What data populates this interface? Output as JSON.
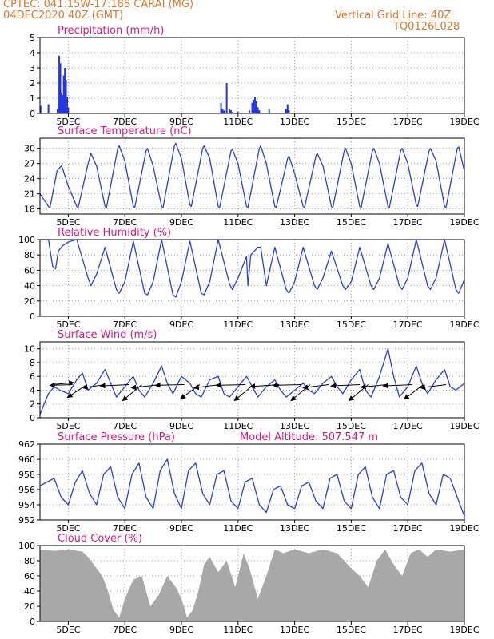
{
  "header": {
    "line1": "CPTEC:   041:15W-17:18S   CARAI (MG)",
    "line2": "04DEC2020 40Z (GMT)",
    "right1": "Vertical Grid Line: 40Z",
    "right2": "TQ0126L028",
    "color": "#e0782a"
  },
  "colors": {
    "title": "#e0167a",
    "line": "#2b3ee0",
    "bar": "#2236e8",
    "cloud": "#a8a8a8",
    "grid": "#9a9a9a",
    "axis": "#000000"
  },
  "x_axis": {
    "ticks": [
      "5DEC",
      "7DEC",
      "9DEC",
      "11DEC",
      "13DEC",
      "15DEC",
      "17DEC",
      "19DEC"
    ],
    "tick_positions": [
      1,
      3,
      5,
      7,
      9,
      11,
      13,
      15
    ],
    "range": [
      0,
      15
    ]
  },
  "model_altitude": "Model Altitude: 507.547 m",
  "chart_data": [
    {
      "type": "bar",
      "title": "Precipitation (mm/h)",
      "ylim": [
        0,
        5
      ],
      "yticks": [
        "0",
        "1",
        "2",
        "3",
        "4",
        "5"
      ],
      "x_days": [
        0.02,
        0.3,
        0.62,
        0.68,
        0.72,
        0.76,
        0.8,
        0.84,
        0.88,
        0.92,
        0.96,
        1.0,
        6.4,
        6.45,
        6.5,
        6.6,
        6.7,
        6.75,
        6.8,
        7.0,
        7.4,
        7.5,
        7.55,
        7.6,
        7.65,
        7.7,
        7.75,
        8.1,
        8.7,
        8.75,
        8.8
      ],
      "values": [
        0.5,
        0.6,
        0.3,
        3.8,
        3.3,
        1.4,
        1.2,
        2.5,
        3.0,
        2.2,
        1.1,
        0.4,
        0.7,
        0.3,
        0.2,
        2.0,
        0.3,
        0.2,
        0.1,
        0.1,
        0.2,
        0.7,
        0.9,
        1.1,
        0.8,
        0.4,
        0.2,
        0.3,
        0.3,
        0.6,
        0.2
      ]
    },
    {
      "type": "line",
      "title": "Surface Temperature (nC)",
      "ylim": [
        17,
        32
      ],
      "yticks": [
        "18",
        "21",
        "24",
        "27",
        "30"
      ],
      "x_days": [
        0,
        0.3,
        0.35,
        0.6,
        0.75,
        0.8,
        1.0,
        1.3,
        1.35,
        1.7,
        1.8,
        2.0,
        2.3,
        2.35,
        2.75,
        2.8,
        3.0,
        3.3,
        3.35,
        3.75,
        3.8,
        4.0,
        4.3,
        4.35,
        4.75,
        4.8,
        5.0,
        5.3,
        5.35,
        5.75,
        5.8,
        6.0,
        6.3,
        6.35,
        6.75,
        6.8,
        7.0,
        7.3,
        7.35,
        7.75,
        7.8,
        8.0,
        8.3,
        8.35,
        8.75,
        8.8,
        9.0,
        9.3,
        9.35,
        9.75,
        9.8,
        10.0,
        10.3,
        10.35,
        10.75,
        10.8,
        11.0,
        11.3,
        11.35,
        11.75,
        11.8,
        12.0,
        12.3,
        12.35,
        12.75,
        12.8,
        13.0,
        13.3,
        13.35,
        13.75,
        13.8,
        14.0,
        14.3,
        14.35,
        14.75,
        14.8,
        15.0
      ],
      "values": [
        21.0,
        18.5,
        18.2,
        25.5,
        26.5,
        26.0,
        22.5,
        18.5,
        18.3,
        27.0,
        29.0,
        26.5,
        18.5,
        18.3,
        30.0,
        30.5,
        27.5,
        18.5,
        18.3,
        29.5,
        30.0,
        26.5,
        18.5,
        18.3,
        30.5,
        31.0,
        28.0,
        18.8,
        18.5,
        30.0,
        30.5,
        28.0,
        18.5,
        18.3,
        29.5,
        29.8,
        27.0,
        18.5,
        18.3,
        30.0,
        30.5,
        27.0,
        18.5,
        18.3,
        28.0,
        28.5,
        25.0,
        18.5,
        18.3,
        28.5,
        29.0,
        26.5,
        18.5,
        18.3,
        29.5,
        30.0,
        27.0,
        18.5,
        18.3,
        29.5,
        30.0,
        27.0,
        18.5,
        18.3,
        29.5,
        30.0,
        27.0,
        18.8,
        18.5,
        29.5,
        30.0,
        27.5,
        18.5,
        18.3,
        30.0,
        30.3,
        25.5
      ]
    },
    {
      "type": "line",
      "title": "Relative Humidity (%)",
      "ylim": [
        0,
        100
      ],
      "yticks": [
        "0",
        "20",
        "40",
        "60",
        "80",
        "100"
      ],
      "x_days": [
        0,
        0.3,
        0.45,
        0.55,
        0.65,
        0.8,
        1.0,
        1.3,
        1.7,
        1.8,
        2.0,
        2.3,
        2.7,
        2.8,
        3.0,
        3.3,
        3.7,
        3.8,
        4.0,
        4.3,
        4.7,
        4.8,
        5.0,
        5.3,
        5.7,
        5.8,
        6.0,
        6.3,
        6.7,
        6.8,
        7.0,
        7.3,
        7.35,
        7.45,
        7.7,
        7.8,
        8.0,
        8.3,
        8.7,
        8.8,
        9.0,
        9.3,
        9.7,
        9.8,
        10.0,
        10.3,
        10.7,
        10.8,
        11.0,
        11.3,
        11.7,
        11.8,
        12.0,
        12.3,
        12.7,
        12.8,
        13.0,
        13.3,
        13.7,
        13.8,
        14.0,
        14.3,
        14.7,
        14.8,
        15.0
      ],
      "values": [
        100,
        100,
        65,
        62,
        85,
        92,
        97,
        100,
        50,
        40,
        55,
        90,
        35,
        30,
        45,
        98,
        30,
        28,
        45,
        100,
        28,
        25,
        45,
        98,
        30,
        28,
        45,
        100,
        42,
        35,
        50,
        78,
        40,
        80,
        90,
        90,
        40,
        90,
        35,
        30,
        45,
        90,
        40,
        35,
        50,
        85,
        40,
        35,
        45,
        90,
        40,
        35,
        50,
        95,
        40,
        35,
        50,
        100,
        40,
        35,
        50,
        100,
        35,
        30,
        48
      ]
    },
    {
      "type": "line",
      "title": "Surface Wind (m/s)",
      "ylim": [
        0,
        11
      ],
      "yticks": [
        "0",
        "2",
        "4",
        "6",
        "8",
        "10"
      ],
      "x_days": [
        0,
        0.1,
        0.3,
        0.5,
        0.7,
        1.0,
        1.3,
        1.5,
        1.7,
        2.0,
        2.3,
        2.5,
        2.7,
        3.0,
        3.3,
        3.5,
        3.7,
        4.0,
        4.3,
        4.5,
        4.7,
        5.0,
        5.3,
        5.5,
        5.7,
        6.0,
        6.3,
        6.5,
        6.7,
        7.0,
        7.3,
        7.5,
        7.7,
        8.0,
        8.3,
        8.5,
        8.7,
        9.0,
        9.3,
        9.5,
        9.7,
        10.0,
        10.3,
        10.5,
        10.7,
        11.0,
        11.3,
        11.5,
        11.7,
        12.0,
        12.3,
        12.5,
        12.7,
        13.0,
        13.3,
        13.5,
        13.7,
        14.0,
        14.3,
        14.5,
        14.7,
        15.0
      ],
      "values": [
        0.5,
        1.5,
        3.5,
        4.5,
        4.0,
        3.5,
        5.5,
        6.5,
        4.0,
        5.0,
        7.0,
        5.0,
        3.0,
        4.5,
        6.0,
        4.0,
        3.0,
        5.0,
        7.5,
        5.0,
        3.5,
        6.0,
        5.0,
        3.5,
        3.0,
        5.5,
        6.0,
        3.5,
        3.0,
        4.5,
        6.0,
        4.5,
        3.0,
        4.5,
        5.5,
        4.0,
        3.0,
        4.0,
        5.0,
        4.0,
        3.5,
        5.0,
        6.0,
        4.5,
        3.5,
        5.5,
        7.0,
        4.0,
        3.0,
        6.0,
        10.0,
        6.0,
        3.0,
        4.5,
        7.5,
        5.0,
        3.5,
        5.5,
        7.0,
        4.5,
        4.0,
        5.0
      ]
    },
    {
      "type": "line",
      "title": "Surface Pressure (hPa)",
      "ylim": [
        952,
        962
      ],
      "yticks": [
        "952",
        "954",
        "956",
        "958",
        "960",
        "962"
      ],
      "x_days": [
        0,
        0.25,
        0.5,
        0.75,
        1.0,
        1.25,
        1.5,
        1.75,
        2.0,
        2.25,
        2.5,
        2.75,
        3.0,
        3.25,
        3.5,
        3.75,
        4.0,
        4.25,
        4.5,
        4.75,
        5.0,
        5.25,
        5.5,
        5.75,
        6.0,
        6.25,
        6.5,
        6.75,
        7.0,
        7.25,
        7.5,
        7.75,
        8.0,
        8.25,
        8.5,
        8.75,
        9.0,
        9.25,
        9.5,
        9.75,
        10.0,
        10.25,
        10.5,
        10.75,
        11.0,
        11.25,
        11.5,
        11.75,
        12.0,
        12.25,
        12.5,
        12.75,
        13.0,
        13.25,
        13.5,
        13.75,
        14.0,
        14.25,
        14.5,
        14.75,
        15.0
      ],
      "values": [
        956.5,
        957.0,
        957.5,
        955.0,
        954.0,
        957.0,
        958.5,
        955.5,
        954.0,
        958.0,
        959.0,
        955.0,
        953.5,
        958.0,
        959.5,
        955.0,
        953.5,
        958.5,
        960.0,
        955.5,
        953.5,
        958.5,
        959.5,
        955.5,
        954.0,
        958.0,
        958.5,
        954.5,
        953.5,
        957.0,
        957.5,
        954.0,
        953.0,
        956.0,
        956.5,
        954.0,
        953.5,
        956.5,
        957.0,
        954.5,
        953.5,
        957.5,
        958.0,
        954.5,
        953.5,
        958.0,
        959.0,
        955.0,
        953.5,
        958.0,
        958.5,
        955.0,
        954.0,
        958.5,
        959.5,
        955.5,
        954.0,
        958.0,
        957.5,
        955.0,
        952.5
      ]
    },
    {
      "type": "area",
      "title": "Cloud Cover (%)",
      "ylim": [
        0,
        100
      ],
      "yticks": [
        "0",
        "20",
        "40",
        "60",
        "80",
        "100"
      ],
      "x_days": [
        0,
        0.5,
        1.0,
        1.5,
        1.7,
        2.0,
        2.2,
        2.4,
        2.6,
        2.8,
        3.0,
        3.3,
        3.6,
        3.9,
        4.2,
        4.5,
        4.8,
        5.0,
        5.2,
        5.4,
        5.6,
        5.8,
        6.0,
        6.3,
        6.6,
        6.9,
        7.2,
        7.4,
        7.7,
        8.0,
        8.3,
        8.6,
        9.0,
        9.5,
        10.0,
        10.5,
        11.0,
        11.3,
        11.6,
        11.9,
        12.2,
        12.5,
        12.8,
        13.1,
        13.4,
        13.7,
        14.0,
        14.5,
        15.0
      ],
      "values": [
        95,
        93,
        95,
        92,
        85,
        70,
        60,
        40,
        15,
        5,
        30,
        55,
        60,
        20,
        35,
        60,
        45,
        30,
        5,
        15,
        40,
        75,
        85,
        65,
        80,
        45,
        90,
        70,
        30,
        60,
        95,
        90,
        95,
        90,
        95,
        90,
        70,
        60,
        45,
        80,
        95,
        75,
        60,
        90,
        95,
        85,
        95,
        92,
        95
      ]
    }
  ],
  "wind_arrows": {
    "x_days": [
      0.4,
      1.15,
      1.65,
      2.3,
      3.15,
      3.6,
      4.25,
      5.1,
      5.65,
      6.35,
      7.25,
      7.55,
      8.45,
      9.25,
      9.55,
      10.2,
      11.3,
      11.6,
      12.25,
      13.15,
      13.55,
      14.35
    ],
    "u": [
      3.5,
      -3.5,
      -3.0,
      -3.5,
      -4.5,
      -3.0,
      -4.5,
      -4.5,
      -3.0,
      -4.0,
      -4.5,
      -3.0,
      -4.5,
      -4.5,
      -3.0,
      -4.0,
      -4.5,
      -3.0,
      -4.0,
      -4.5,
      -3.0,
      -4.0
    ],
    "v": [
      0.3,
      -0.1,
      -2.0,
      -0.5,
      -0.2,
      -2.5,
      -0.5,
      -0.1,
      -2.2,
      -0.5,
      -0.1,
      -2.5,
      -0.3,
      -0.1,
      -2.5,
      -0.5,
      -0.2,
      -2.5,
      -0.4,
      -0.2,
      -2.3,
      -0.5
    ]
  }
}
